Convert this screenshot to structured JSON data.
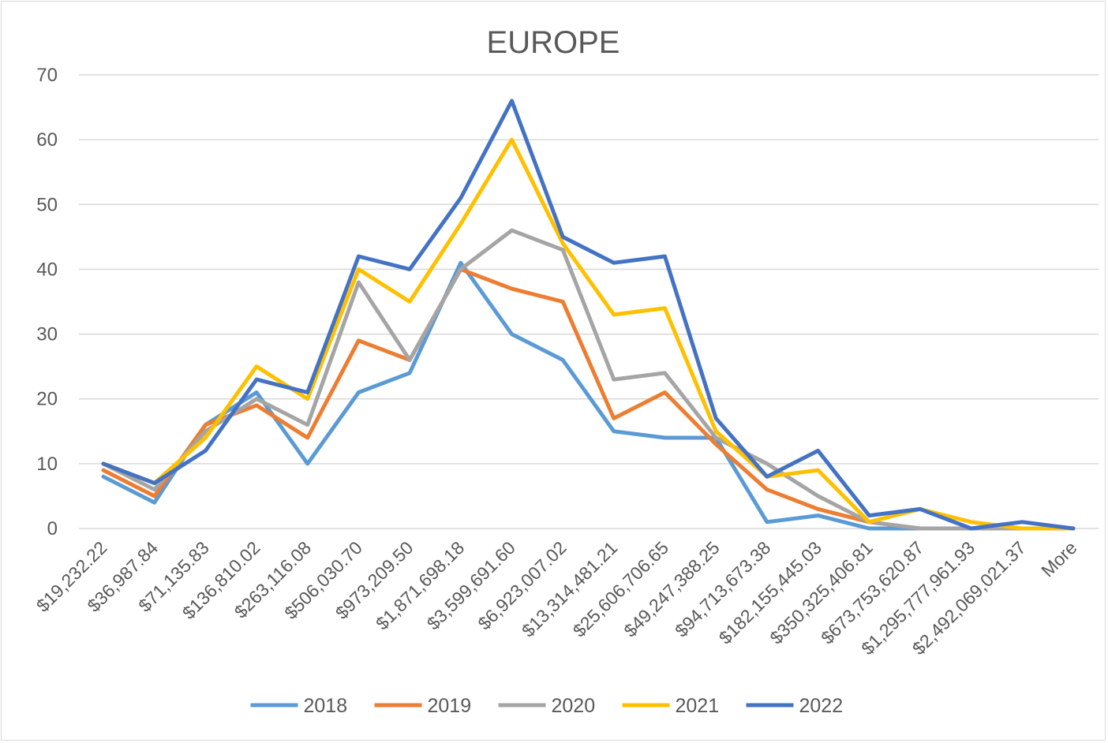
{
  "chart_data": {
    "type": "line",
    "title": "EUROPE",
    "xlabel": "",
    "ylabel": "",
    "ylim": [
      0,
      70
    ],
    "yticks": [
      "0",
      "10",
      "20",
      "30",
      "40",
      "50",
      "60",
      "70"
    ],
    "grid": true,
    "legend_position": "bottom",
    "categories": [
      "$19,232.22",
      "$36,987.84",
      "$71,135.83",
      "$136,810.02",
      "$263,116.08",
      "$506,030.70",
      "$973,209.50",
      "$1,871,698.18",
      "$3,599,691.60",
      "$6,923,007.02",
      "$13,314,481.21",
      "$25,606,706.65",
      "$49,247,388.25",
      "$94,713,673.38",
      "$182,155,445.03",
      "$350,325,406.81",
      "$673,753,620.87",
      "$1,295,777,961.93",
      "$2,492,069,021.37",
      "More"
    ],
    "series": [
      {
        "name": "2018",
        "color": "#5B9BD5",
        "values": [
          8,
          4,
          16,
          21,
          10,
          21,
          24,
          41,
          30,
          26,
          15,
          14,
          14,
          1,
          2,
          0,
          0,
          0,
          0,
          0
        ]
      },
      {
        "name": "2019",
        "color": "#ED7D31",
        "values": [
          9,
          5,
          16,
          19,
          14,
          29,
          26,
          40,
          37,
          35,
          17,
          21,
          13,
          6,
          3,
          1,
          0,
          0,
          0,
          0
        ]
      },
      {
        "name": "2020",
        "color": "#A5A5A5",
        "values": [
          10,
          6,
          15,
          20,
          16,
          38,
          26,
          40,
          46,
          43,
          23,
          24,
          14,
          10,
          5,
          1,
          0,
          0,
          0,
          0
        ]
      },
      {
        "name": "2021",
        "color": "#FFC000",
        "values": [
          10,
          7,
          14,
          25,
          20,
          40,
          35,
          47,
          60,
          44,
          33,
          34,
          15,
          8,
          9,
          1,
          3,
          1,
          0,
          0
        ]
      },
      {
        "name": "2022",
        "color": "#4472C4",
        "values": [
          10,
          7,
          12,
          23,
          21,
          42,
          40,
          51,
          66,
          45,
          41,
          42,
          17,
          8,
          12,
          2,
          3,
          0,
          1,
          0
        ]
      }
    ]
  }
}
